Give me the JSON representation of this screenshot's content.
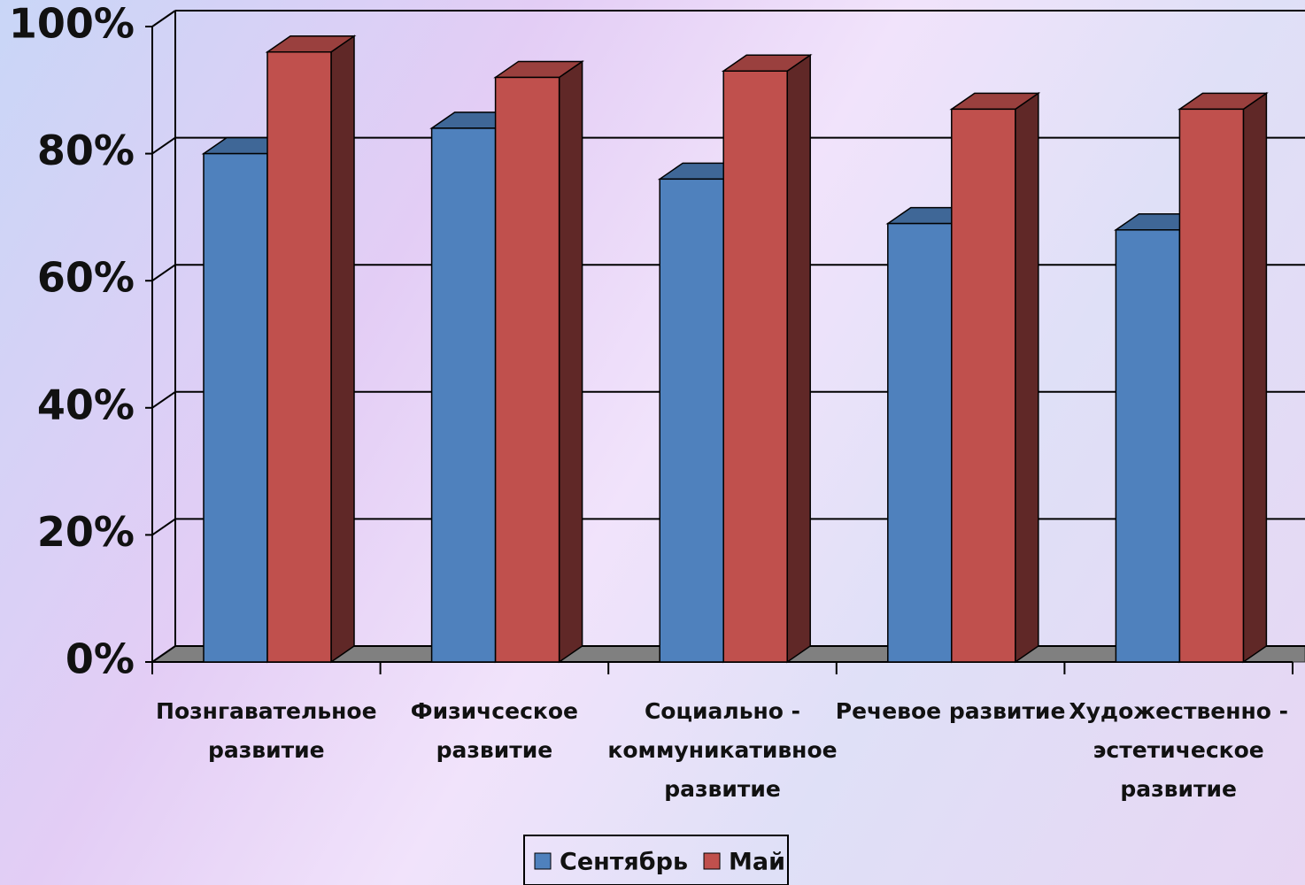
{
  "chart_data": {
    "type": "bar",
    "categories": [
      "Познгавательное развитие",
      "Физичсеское развитие",
      "Социально - коммуникативное развитие",
      "Речевое развитие",
      "Художественно - эстетическое развитие"
    ],
    "series": [
      {
        "name": "Сентябрь",
        "color": "#4f81bd",
        "values": [
          80,
          84,
          76,
          69,
          68
        ]
      },
      {
        "name": "Май",
        "color": "#c0504d",
        "values": [
          96,
          92,
          93,
          87,
          87
        ]
      }
    ],
    "ylim": [
      0,
      100
    ],
    "yticks": [
      {
        "value": 0,
        "label": "0%"
      },
      {
        "value": 20,
        "label": "20%"
      },
      {
        "value": 40,
        "label": "40%"
      },
      {
        "value": 60,
        "label": "60%"
      },
      {
        "value": 80,
        "label": "80%"
      },
      {
        "value": 100,
        "label": "100%"
      }
    ],
    "grid": true
  }
}
